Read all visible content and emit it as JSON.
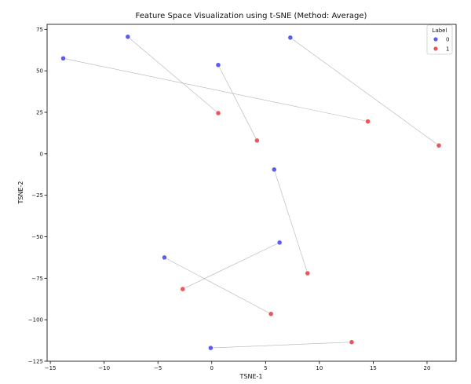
{
  "chart_data": {
    "type": "scatter",
    "title": "Feature Space Visualization using t-SNE (Method: Average)",
    "xlabel": "TSNE-1",
    "ylabel": "TSNE-2",
    "xlim": [
      -15.3,
      22.7
    ],
    "ylim": [
      -125,
      78
    ],
    "xticks": [
      -15,
      -10,
      -5,
      0,
      5,
      10,
      15,
      20
    ],
    "yticks": [
      -125,
      -100,
      -75,
      -50,
      -25,
      0,
      25,
      50,
      75
    ],
    "xtick_labels": [
      "−15",
      "−10",
      "−5",
      "0",
      "5",
      "10",
      "15",
      "20"
    ],
    "ytick_labels": [
      "−125",
      "−100",
      "−75",
      "−50",
      "−25",
      "0",
      "25",
      "50",
      "75"
    ],
    "legend": {
      "title": "Label",
      "position": "top-right",
      "entries": [
        "0",
        "1"
      ]
    },
    "colors": {
      "0": "#5b5bf0",
      "1": "#ee5555"
    },
    "series": [
      {
        "name": "0",
        "x": [
          -13.8,
          -7.8,
          0.6,
          7.3,
          5.8,
          6.3,
          -4.4,
          -0.1
        ],
        "y": [
          57.5,
          70.5,
          53.5,
          70.0,
          -9.5,
          -53.5,
          -62.5,
          -117
        ]
      },
      {
        "name": "1",
        "x": [
          0.6,
          4.2,
          14.5,
          21.1,
          8.9,
          -2.7,
          5.5,
          13.0
        ],
        "y": [
          24.5,
          8.0,
          19.5,
          5.0,
          -72.0,
          -81.5,
          -96.5,
          -113.5
        ]
      }
    ],
    "pairs": [
      {
        "from": [
          -13.8,
          57.5
        ],
        "to": [
          14.5,
          19.5
        ]
      },
      {
        "from": [
          -7.8,
          70.5
        ],
        "to": [
          0.6,
          24.5
        ]
      },
      {
        "from": [
          0.6,
          53.5
        ],
        "to": [
          4.2,
          8.0
        ]
      },
      {
        "from": [
          7.3,
          70.0
        ],
        "to": [
          21.1,
          5.0
        ]
      },
      {
        "from": [
          5.8,
          -9.5
        ],
        "to": [
          8.9,
          -72.0
        ]
      },
      {
        "from": [
          6.3,
          -53.5
        ],
        "to": [
          -2.7,
          -81.5
        ]
      },
      {
        "from": [
          -4.4,
          -62.5
        ],
        "to": [
          5.5,
          -96.5
        ]
      },
      {
        "from": [
          -0.1,
          -117
        ],
        "to": [
          13.0,
          -113.5
        ]
      }
    ]
  }
}
